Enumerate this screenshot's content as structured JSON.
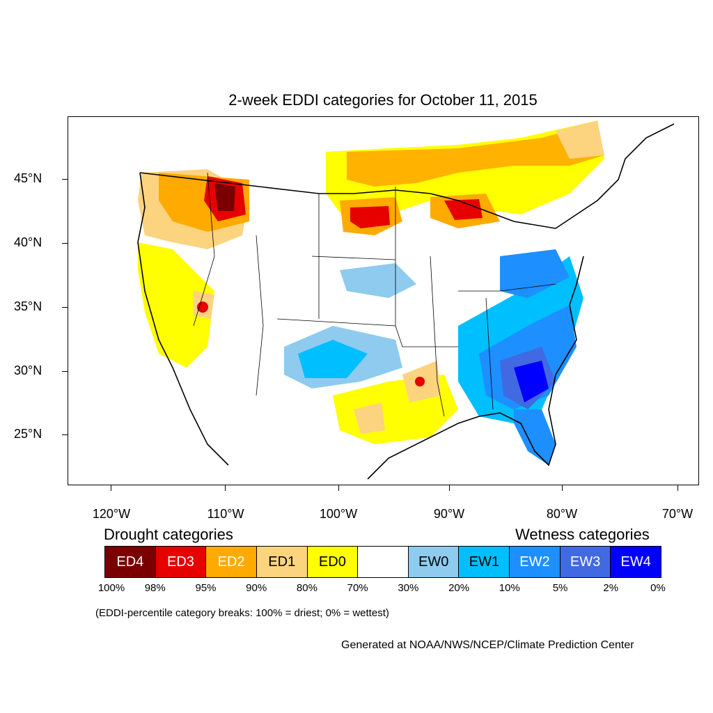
{
  "title": "2-week EDDI categories for October 11, 2015",
  "lat_labels": [
    "45°N",
    "40°N",
    "35°N",
    "30°N",
    "25°N"
  ],
  "lon_labels": [
    "120°W",
    "110°W",
    "100°W",
    "90°W",
    "80°W",
    "70°W"
  ],
  "legend": {
    "drought_heading": "Drought categories",
    "wetness_heading": "Wetness categories",
    "categories": [
      {
        "label": "ED4",
        "color": "#7a0000",
        "text_color": "#ffffff"
      },
      {
        "label": "ED3",
        "color": "#e60000",
        "text_color": "#ffffff"
      },
      {
        "label": "ED2",
        "color": "#ffaa00",
        "text_color": "#ffffff"
      },
      {
        "label": "ED1",
        "color": "#fcd37f",
        "text_color": "#000000"
      },
      {
        "label": "ED0",
        "color": "#ffff00",
        "text_color": "#000000"
      },
      {
        "label": "",
        "color": "#ffffff",
        "text_color": "#000000"
      },
      {
        "label": "EW0",
        "color": "#8ecbef",
        "text_color": "#000000"
      },
      {
        "label": "EW1",
        "color": "#00bfff",
        "text_color": "#000000"
      },
      {
        "label": "EW2",
        "color": "#1e8fff",
        "text_color": "#ffffff"
      },
      {
        "label": "EW3",
        "color": "#4169e1",
        "text_color": "#ffffff"
      },
      {
        "label": "EW4",
        "color": "#0000ff",
        "text_color": "#ffffff"
      }
    ],
    "percent_breaks": [
      "100%",
      "98%",
      "95%",
      "90%",
      "80%",
      "70%",
      "30%",
      "20%",
      "10%",
      "5%",
      "2%",
      "0%"
    ]
  },
  "note": "(EDDI-percentile category breaks: 100% = driest; 0% = wettest)",
  "credit": "Generated at NOAA/NWS/NCEP/Climate Prediction Center"
}
